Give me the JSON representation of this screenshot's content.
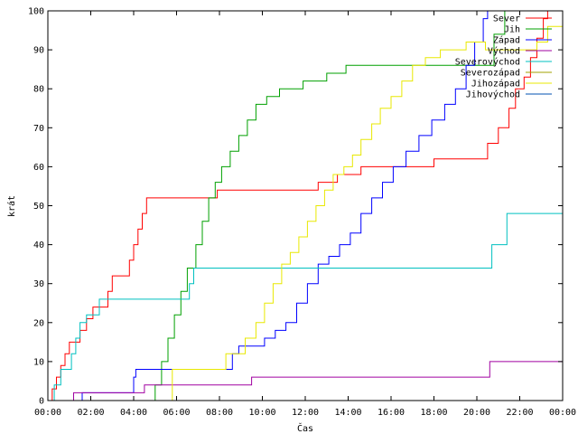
{
  "chart_data": {
    "type": "line",
    "step": true,
    "xlabel": "Čas",
    "ylabel": "krát",
    "xlim": [
      0,
      24
    ],
    "ylim": [
      0,
      100
    ],
    "x_ticks": [
      {
        "v": 0,
        "label": "00:00"
      },
      {
        "v": 2,
        "label": "02:00"
      },
      {
        "v": 4,
        "label": "04:00"
      },
      {
        "v": 6,
        "label": "06:00"
      },
      {
        "v": 8,
        "label": "08:00"
      },
      {
        "v": 10,
        "label": "10:00"
      },
      {
        "v": 12,
        "label": "12:00"
      },
      {
        "v": 14,
        "label": "14:00"
      },
      {
        "v": 16,
        "label": "16:00"
      },
      {
        "v": 18,
        "label": "18:00"
      },
      {
        "v": 20,
        "label": "20:00"
      },
      {
        "v": 22,
        "label": "22:00"
      },
      {
        "v": 24,
        "label": "00:00"
      }
    ],
    "y_ticks": [
      {
        "v": 0,
        "label": "0"
      },
      {
        "v": 10,
        "label": "10"
      },
      {
        "v": 20,
        "label": "20"
      },
      {
        "v": 30,
        "label": "30"
      },
      {
        "v": 40,
        "label": "40"
      },
      {
        "v": 50,
        "label": "50"
      },
      {
        "v": 60,
        "label": "60"
      },
      {
        "v": 70,
        "label": "70"
      },
      {
        "v": 80,
        "label": "80"
      },
      {
        "v": 90,
        "label": "90"
      },
      {
        "v": 100,
        "label": "100"
      }
    ],
    "grid": false,
    "legend_position": "top-right",
    "series": [
      {
        "name": "Sever",
        "color": "#ff0000",
        "points": [
          [
            0,
            0
          ],
          [
            0.2,
            3
          ],
          [
            0.4,
            6
          ],
          [
            0.6,
            9
          ],
          [
            0.8,
            12
          ],
          [
            1.0,
            15
          ],
          [
            1.5,
            18
          ],
          [
            1.8,
            21
          ],
          [
            2.1,
            24
          ],
          [
            2.8,
            28
          ],
          [
            3.0,
            32
          ],
          [
            3.8,
            36
          ],
          [
            4.0,
            40
          ],
          [
            4.2,
            44
          ],
          [
            4.4,
            48
          ],
          [
            4.6,
            52
          ],
          [
            7.9,
            54
          ],
          [
            12.6,
            56
          ],
          [
            13.5,
            58
          ],
          [
            14.6,
            60
          ],
          [
            18.0,
            62
          ],
          [
            20.5,
            66
          ],
          [
            21.0,
            70
          ],
          [
            21.5,
            75
          ],
          [
            21.8,
            80
          ],
          [
            22.2,
            83
          ],
          [
            22.5,
            88
          ],
          [
            22.8,
            93
          ],
          [
            23.1,
            98
          ],
          [
            23.3,
            100
          ]
        ]
      },
      {
        "name": "Jih",
        "color": "#00a000",
        "points": [
          [
            0,
            0
          ],
          [
            5.0,
            4
          ],
          [
            5.3,
            10
          ],
          [
            5.6,
            16
          ],
          [
            5.9,
            22
          ],
          [
            6.2,
            28
          ],
          [
            6.5,
            34
          ],
          [
            6.9,
            40
          ],
          [
            7.2,
            46
          ],
          [
            7.5,
            52
          ],
          [
            7.8,
            56
          ],
          [
            8.1,
            60
          ],
          [
            8.5,
            64
          ],
          [
            8.9,
            68
          ],
          [
            9.3,
            72
          ],
          [
            9.7,
            76
          ],
          [
            10.2,
            78
          ],
          [
            10.8,
            80
          ],
          [
            11.9,
            82
          ],
          [
            13.0,
            84
          ],
          [
            13.9,
            86
          ],
          [
            20.0,
            86
          ],
          [
            20.8,
            94
          ],
          [
            21.3,
            100
          ]
        ]
      },
      {
        "name": "Západ",
        "color": "#0000ff",
        "points": [
          [
            0,
            0
          ],
          [
            1.3,
            0
          ],
          [
            1.6,
            2
          ],
          [
            2.5,
            2
          ],
          [
            4.0,
            6
          ],
          [
            4.1,
            8
          ],
          [
            5.9,
            8
          ],
          [
            8.6,
            12
          ],
          [
            8.9,
            14
          ],
          [
            10.1,
            16
          ],
          [
            10.6,
            18
          ],
          [
            11.1,
            20
          ],
          [
            11.6,
            25
          ],
          [
            12.1,
            30
          ],
          [
            12.6,
            35
          ],
          [
            13.1,
            37
          ],
          [
            13.6,
            40
          ],
          [
            14.1,
            43
          ],
          [
            14.6,
            48
          ],
          [
            15.1,
            52
          ],
          [
            15.6,
            56
          ],
          [
            16.1,
            60
          ],
          [
            16.7,
            64
          ],
          [
            17.3,
            68
          ],
          [
            17.9,
            72
          ],
          [
            18.5,
            76
          ],
          [
            19.0,
            80
          ],
          [
            19.5,
            86
          ],
          [
            19.9,
            92
          ],
          [
            20.3,
            98
          ],
          [
            20.5,
            100
          ]
        ]
      },
      {
        "name": "Východ",
        "color": "#a000a0",
        "points": [
          [
            0,
            0
          ],
          [
            1.2,
            2
          ],
          [
            4.2,
            2
          ],
          [
            4.5,
            4
          ],
          [
            9.3,
            4
          ],
          [
            9.5,
            6
          ],
          [
            20.4,
            6
          ],
          [
            20.6,
            10
          ],
          [
            24,
            10
          ]
        ]
      },
      {
        "name": "Severovýchod",
        "color": "#00c0c0",
        "points": [
          [
            0,
            0
          ],
          [
            0.3,
            4
          ],
          [
            0.6,
            8
          ],
          [
            1.1,
            12
          ],
          [
            1.3,
            16
          ],
          [
            1.5,
            20
          ],
          [
            1.8,
            22
          ],
          [
            2.4,
            26
          ],
          [
            6.2,
            26
          ],
          [
            6.6,
            30
          ],
          [
            6.8,
            34
          ],
          [
            20.4,
            34
          ],
          [
            20.7,
            40
          ],
          [
            21.4,
            48
          ],
          [
            24,
            48
          ]
        ]
      },
      {
        "name": "Severozápad",
        "color": "#a0a000",
        "points": [
          [
            0,
            0
          ],
          [
            0,
            0
          ]
        ]
      },
      {
        "name": "Jihozápad",
        "color": "#e8e800",
        "points": [
          [
            0,
            0
          ],
          [
            5.6,
            0
          ],
          [
            5.8,
            8
          ],
          [
            7.8,
            8
          ],
          [
            8.3,
            12
          ],
          [
            9.2,
            16
          ],
          [
            9.7,
            20
          ],
          [
            10.1,
            25
          ],
          [
            10.5,
            30
          ],
          [
            10.9,
            35
          ],
          [
            11.3,
            38
          ],
          [
            11.7,
            42
          ],
          [
            12.1,
            46
          ],
          [
            12.5,
            50
          ],
          [
            12.9,
            54
          ],
          [
            13.3,
            58
          ],
          [
            13.8,
            60
          ],
          [
            14.2,
            63
          ],
          [
            14.6,
            67
          ],
          [
            15.1,
            71
          ],
          [
            15.5,
            75
          ],
          [
            16.0,
            78
          ],
          [
            16.5,
            82
          ],
          [
            17.0,
            86
          ],
          [
            17.6,
            88
          ],
          [
            18.3,
            90
          ],
          [
            19.5,
            92
          ],
          [
            20.4,
            90
          ],
          [
            21.2,
            90
          ],
          [
            22.0,
            90
          ],
          [
            22.8,
            92
          ],
          [
            23.3,
            96
          ],
          [
            24,
            96
          ]
        ]
      },
      {
        "name": "Jihovýchod",
        "color": "#0050b0",
        "points": [
          [
            0,
            0
          ],
          [
            0,
            0
          ]
        ]
      }
    ]
  }
}
